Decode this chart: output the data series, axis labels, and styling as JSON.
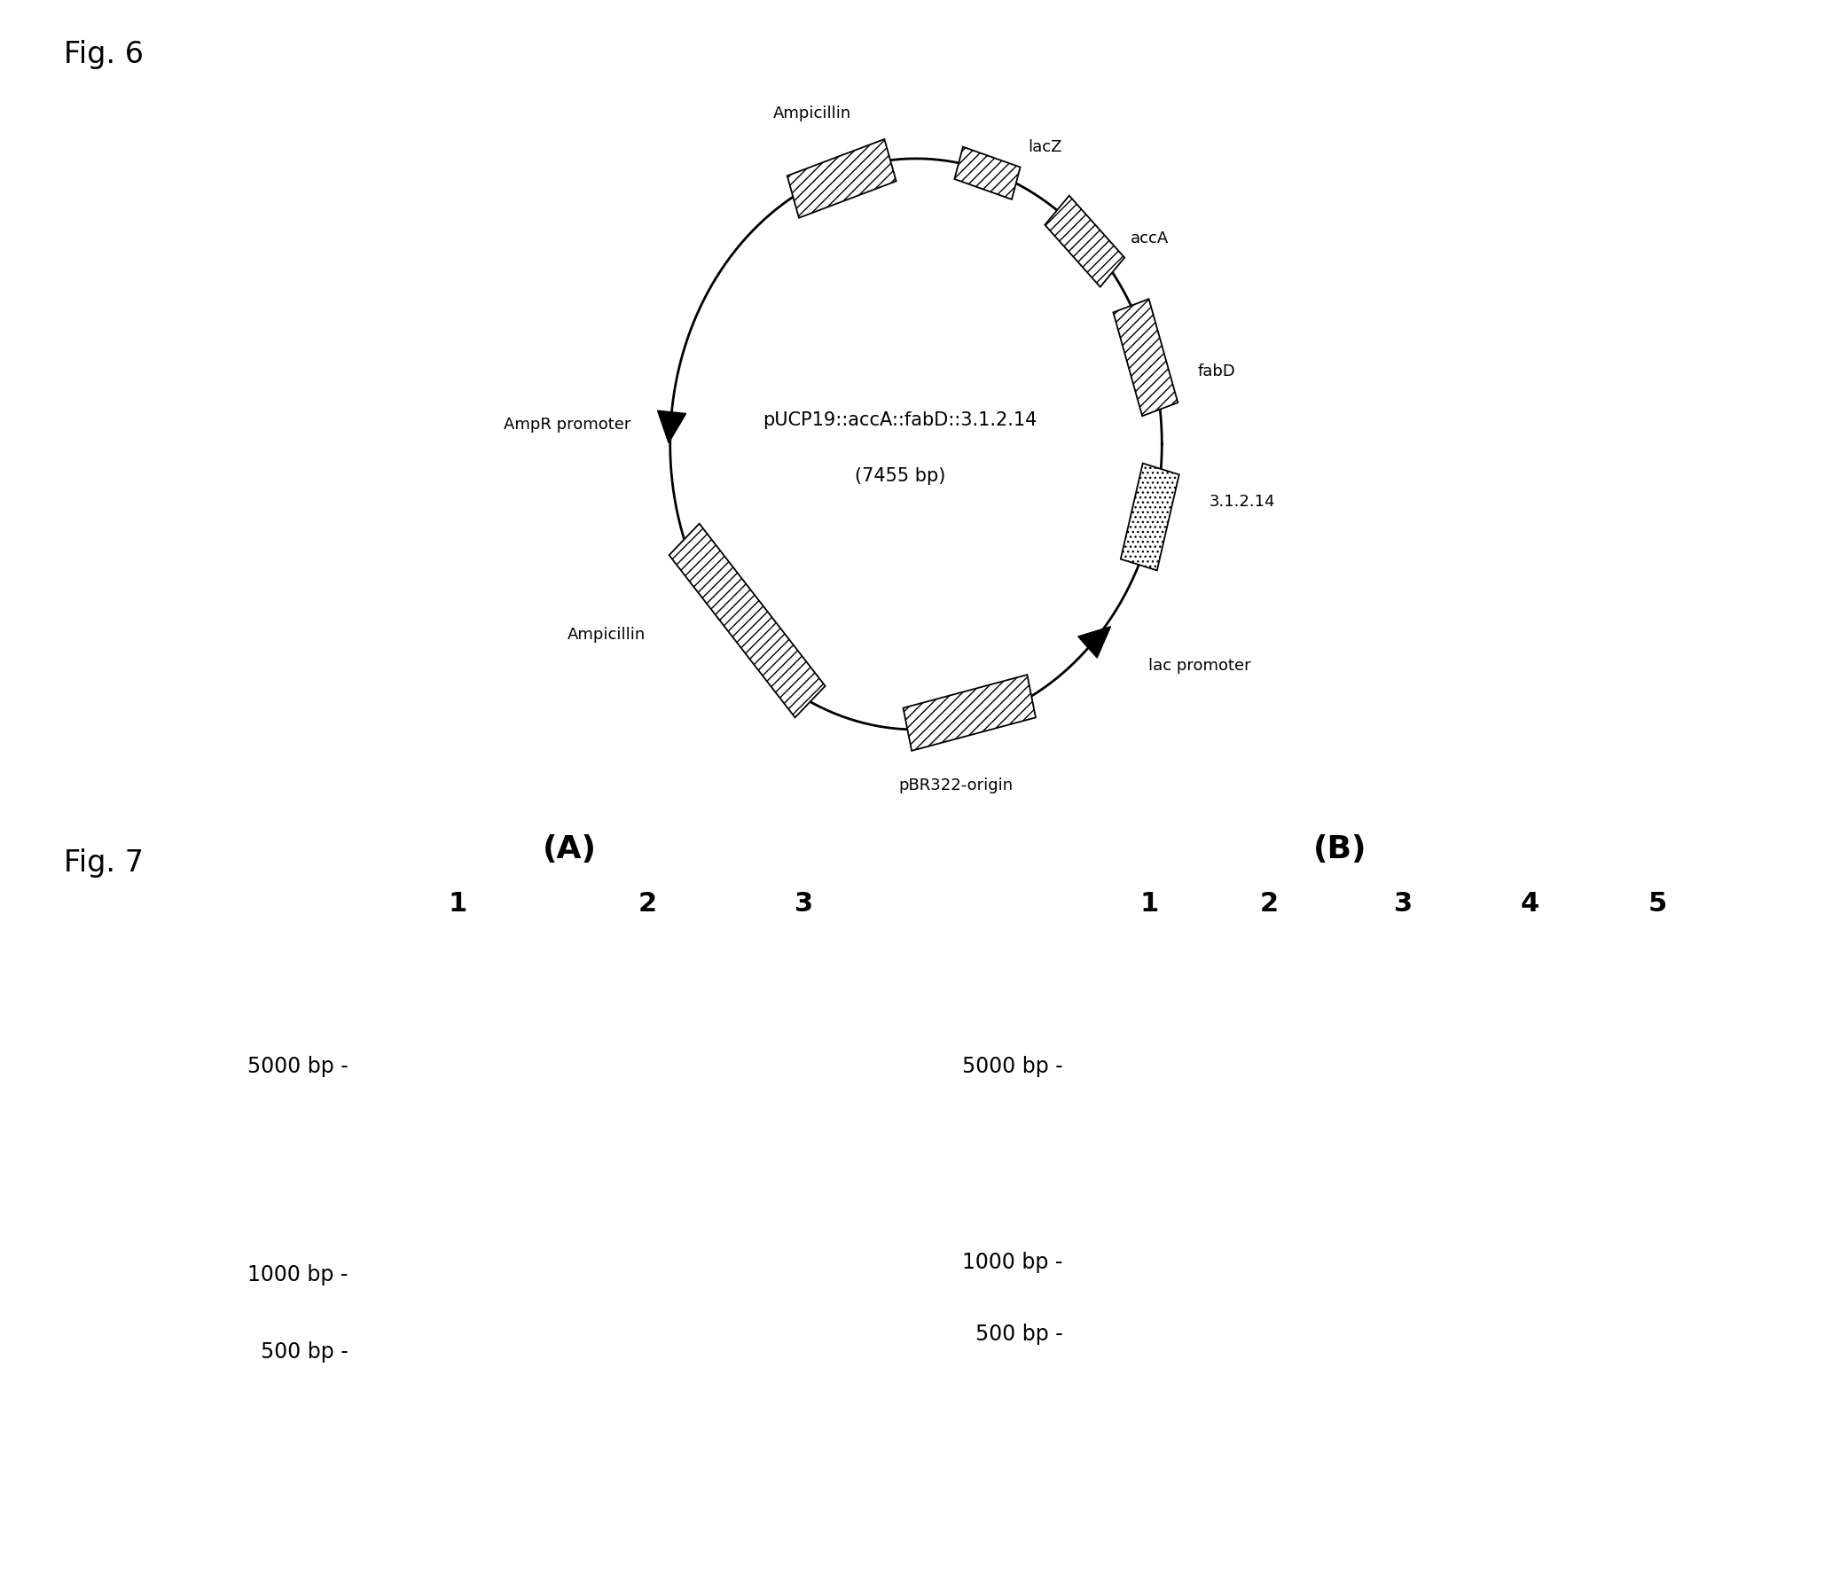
{
  "fig6_title": "Fig. 6",
  "fig7_title": "Fig. 7",
  "plasmid_name": "pUCP19::accA::fabD::3.1.2.14",
  "plasmid_size": "(7455 bp)",
  "gel_A_title": "(A)",
  "gel_A_lanes": [
    "1",
    "2",
    "3"
  ],
  "gel_B_title": "(B)",
  "gel_B_lanes": [
    "1",
    "2",
    "3",
    "4",
    "5"
  ],
  "marker_labels": [
    "5000 bp",
    "1000 bp",
    "500 bp"
  ],
  "bg_color": "#000000",
  "band_color": "#ffffff",
  "text_color": "#000000",
  "fig_width": 20.66,
  "fig_height": 17.89
}
